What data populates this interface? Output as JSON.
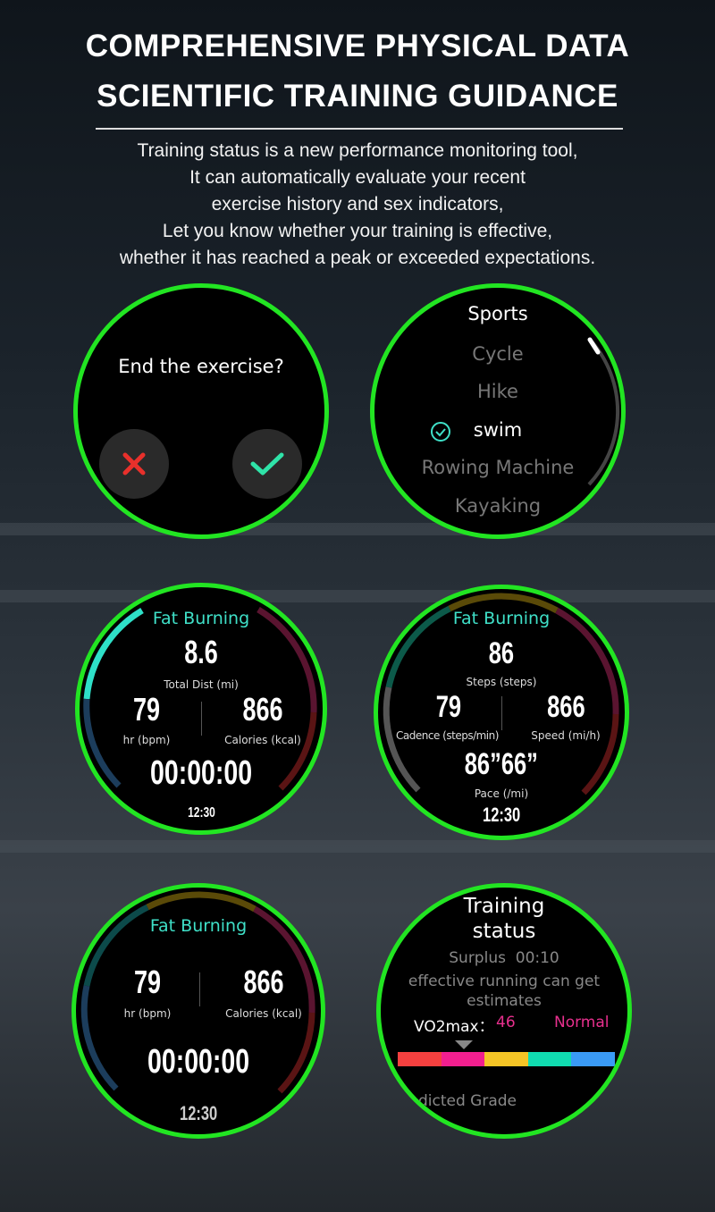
{
  "header": {
    "title_line1": "COMPREHENSIVE PHYSICAL DATA",
    "title_line2": "SCIENTIFIC TRAINING GUIDANCE",
    "description": [
      "Training status is a new performance monitoring tool,",
      "It can automatically evaluate your recent",
      "exercise history and sex indicators,",
      "Let you know whether your training is effective,",
      "whether it has reached a peak or exceeded expectations."
    ]
  },
  "end_exercise": {
    "prompt": "End the exercise?",
    "cancel_icon": "x-icon",
    "confirm_icon": "check-icon",
    "colors": {
      "cancel": "#e8302b",
      "confirm": "#2fe3a8"
    }
  },
  "sports": {
    "title": "Sports",
    "items": [
      "Cycle",
      "Hike",
      "swim",
      "Rowing Machine",
      "Kayaking"
    ],
    "selected": "swim"
  },
  "run1": {
    "zone": "Fat Burning",
    "dist": "8.6",
    "dist_label": "Total Dist (mi)",
    "hr": "79",
    "hr_label": "hr (bpm)",
    "cal": "866",
    "cal_label": "Calories (kcal)",
    "timer": "00:00:00",
    "time": "12:30"
  },
  "run2": {
    "zone": "Fat Burning",
    "steps": "86",
    "steps_label": "Steps (steps)",
    "cadence": "79",
    "cadence_label": "Cadence (steps/min)",
    "speed": "866",
    "speed_label": "Speed (mi/h)",
    "pace": "86”66”",
    "pace_label": "Pace (/mi)",
    "time": "12:30"
  },
  "run3": {
    "zone": "Fat Burning",
    "hr": "79",
    "hr_label": "hr (bpm)",
    "cal": "866",
    "cal_label": "Calories (kcal)",
    "timer": "00:00:00",
    "time": "12:30"
  },
  "training": {
    "title_line1": "Training",
    "title_line2": "status",
    "surplus": "Surplus  00:10",
    "note_line1": "effective running can get",
    "note_line2": "estimates",
    "vo2_label": "VO2max：",
    "vo2_value": "46",
    "vo2_status": "Normal",
    "grade": "dicted Grade",
    "scale_colors": [
      "#f5403f",
      "#f21f8f",
      "#f5c526",
      "#10dcb0",
      "#3a9af5"
    ],
    "accent": "#e8308e"
  },
  "colors": {
    "ring": "#22e522",
    "teal": "#3fe0c8"
  }
}
